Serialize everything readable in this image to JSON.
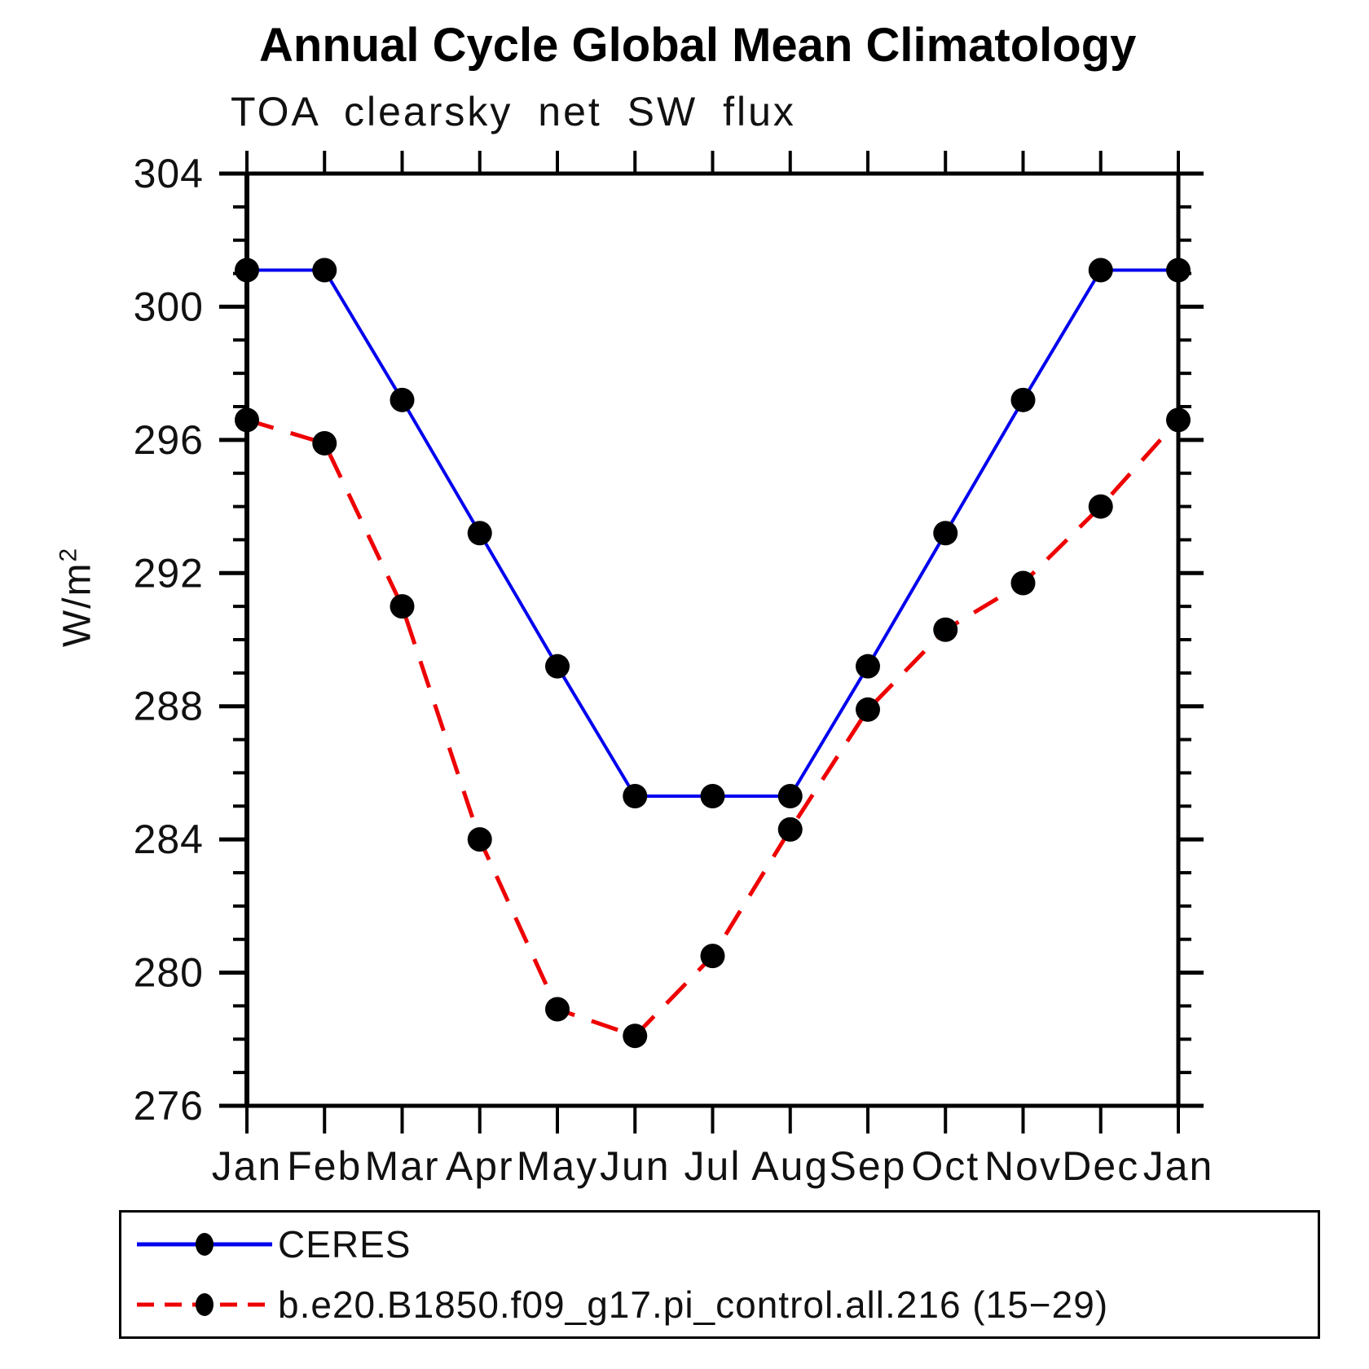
{
  "y_axis": {
    "label_base": "W/m",
    "label_sup": "2"
  },
  "chart_data": {
    "type": "line",
    "title": "Annual Cycle Global Mean Climatology",
    "subtitle": "TOA clearsky net SW flux",
    "ylabel": "W/m²",
    "x_categories": [
      "Jan",
      "Feb",
      "Mar",
      "Apr",
      "May",
      "Jun",
      "Jul",
      "Aug",
      "Sep",
      "Oct",
      "Nov",
      "Dec",
      "Jan"
    ],
    "ylim": [
      276,
      304
    ],
    "y_major_ticks": [
      276,
      280,
      284,
      288,
      292,
      296,
      300,
      304
    ],
    "y_minor_step": 1,
    "grid": false,
    "legend_position": "bottom-left-box",
    "series": [
      {
        "name": "CERES",
        "color": "#0000ee",
        "line_style": "solid",
        "marker": "filled-black-circle",
        "values": [
          301.1,
          301.1,
          297.2,
          293.2,
          289.2,
          285.3,
          285.3,
          285.3,
          289.2,
          293.2,
          297.2,
          301.1,
          301.1
        ]
      },
      {
        "name": "b.e20.B1850.f09_g17.pi_control.all.216 (15−29)",
        "color": "#ee0000",
        "line_style": "dashed",
        "marker": "filled-black-circle",
        "values": [
          296.6,
          295.9,
          291.0,
          284.0,
          278.9,
          278.1,
          280.5,
          284.3,
          287.9,
          290.3,
          291.7,
          294.0,
          296.6
        ]
      }
    ]
  }
}
